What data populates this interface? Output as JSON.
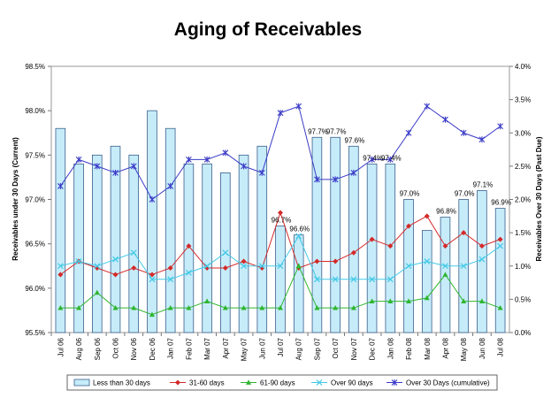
{
  "chart_data": {
    "type": "bar",
    "title": "Aging of Receivables",
    "categories": [
      "Jul 06",
      "Aug 06",
      "Sep 06",
      "Oct 06",
      "Nov 06",
      "Dec 06",
      "Jan 07",
      "Feb 07",
      "Mar 07",
      "Apr 07",
      "May 07",
      "Jun 07",
      "Jul 07",
      "Aug 07",
      "Sep 07",
      "Oct 07",
      "Nov 07",
      "Dec 07",
      "Jan 08",
      "Feb 08",
      "Mar 08",
      "Apr 08",
      "May 08",
      "Jun 08",
      "Jul 08"
    ],
    "ylabel_left": "Receivables under 30 Days (Current)",
    "ylabel_right": "Receivables Over 30 Days (Past Due)",
    "ylim_left": [
      95.5,
      98.5
    ],
    "yticks_left": [
      "95.5%",
      "96.0%",
      "96.5%",
      "97.0%",
      "97.5%",
      "98.0%",
      "98.5%"
    ],
    "ylim_right": [
      0,
      4
    ],
    "yticks_right": [
      "0.0%",
      "0.5%",
      "1.0%",
      "1.5%",
      "2.0%",
      "2.5%",
      "3.0%",
      "3.5%",
      "4.0%"
    ],
    "grid": false,
    "legend_position": "bottom",
    "bars": {
      "name": "Less than 30 days",
      "axis": "left",
      "color": "#c6ecfa",
      "edge": "#3a5f8c",
      "values": [
        97.8,
        97.4,
        97.5,
        97.6,
        97.5,
        98.0,
        97.8,
        97.4,
        97.4,
        97.3,
        97.5,
        97.6,
        96.7,
        96.6,
        97.7,
        97.7,
        97.6,
        97.4,
        97.4,
        97.0,
        96.65,
        96.8,
        97.0,
        97.1,
        96.9
      ]
    },
    "data_labels": [
      {
        "index": 12,
        "text": "96.7%"
      },
      {
        "index": 13,
        "text": "96.6%"
      },
      {
        "index": 14,
        "text": "97.7%"
      },
      {
        "index": 15,
        "text": "97.7%"
      },
      {
        "index": 16,
        "text": "97.6%"
      },
      {
        "index": 17,
        "text": "97.4%"
      },
      {
        "index": 18,
        "text": "97.4%"
      },
      {
        "index": 19,
        "text": "97.0%"
      },
      {
        "index": 21,
        "text": "96.8%"
      },
      {
        "index": 22,
        "text": "97.0%"
      },
      {
        "index": 23,
        "text": "97.1%"
      },
      {
        "index": 24,
        "text": "96.9%"
      }
    ],
    "series": [
      {
        "name": "31-60 days",
        "axis": "right",
        "color": "#d42a2a",
        "marker": "diamond",
        "values": [
          0.87,
          1.07,
          0.97,
          0.87,
          0.97,
          0.87,
          0.97,
          1.3,
          0.97,
          0.97,
          1.07,
          0.97,
          1.8,
          0.97,
          1.07,
          1.07,
          1.2,
          1.4,
          1.3,
          1.6,
          1.75,
          1.3,
          1.5,
          1.3,
          1.4
        ]
      },
      {
        "name": "61-90 days",
        "axis": "right",
        "color": "#2fb52f",
        "marker": "triangle",
        "values": [
          0.37,
          0.37,
          0.6,
          0.37,
          0.37,
          0.27,
          0.37,
          0.37,
          0.47,
          0.37,
          0.37,
          0.37,
          0.37,
          1.0,
          0.37,
          0.37,
          0.37,
          0.47,
          0.47,
          0.47,
          0.52,
          0.87,
          0.47,
          0.47,
          0.37
        ]
      },
      {
        "name": "Over 90 days",
        "axis": "right",
        "color": "#42c9e6",
        "marker": "x",
        "values": [
          1.0,
          1.07,
          1.0,
          1.1,
          1.2,
          0.8,
          0.8,
          0.9,
          1.0,
          1.2,
          1.0,
          1.0,
          1.0,
          1.45,
          0.8,
          0.8,
          0.8,
          0.8,
          0.8,
          1.0,
          1.07,
          1.0,
          1.0,
          1.1,
          1.3
        ]
      },
      {
        "name": "Over 30 Days (cumulative)",
        "axis": "right",
        "color": "#3c3cc8",
        "marker": "star",
        "values": [
          2.2,
          2.6,
          2.5,
          2.4,
          2.5,
          2.0,
          2.2,
          2.6,
          2.6,
          2.7,
          2.5,
          2.4,
          3.3,
          3.4,
          2.3,
          2.3,
          2.4,
          2.6,
          2.6,
          3.0,
          3.4,
          3.2,
          3.0,
          2.9,
          3.1
        ]
      }
    ]
  }
}
